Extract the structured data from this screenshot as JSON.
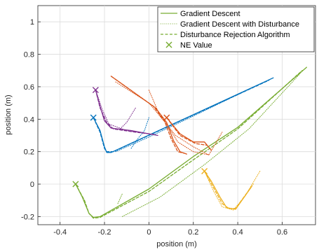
{
  "chart_data": {
    "type": "line",
    "title": "",
    "xlabel": "position (m)",
    "ylabel": "position (m)",
    "xlim": [
      -0.5,
      0.75
    ],
    "ylim": [
      -0.25,
      1.1
    ],
    "xticks": [
      -0.4,
      -0.2,
      0,
      0.2,
      0.4,
      0.6
    ],
    "yticks": [
      -0.2,
      0,
      0.2,
      0.4,
      0.6,
      0.8,
      1
    ],
    "xtick_labels": [
      "-0.4",
      "-0.2",
      "0",
      "0.2",
      "0.4",
      "0.6"
    ],
    "ytick_labels": [
      "-0.2",
      "0",
      "0.2",
      "0.4",
      "0.6",
      "0.8",
      "1"
    ],
    "grid": true,
    "legend_position": "top-right",
    "legend": [
      {
        "label": "Gradient Descent",
        "style": "solid"
      },
      {
        "label": "Gradient Descent with Disturbance",
        "style": "dotted"
      },
      {
        "label": "Disturbance Rejection Algorithm",
        "style": "dashed"
      },
      {
        "label": "NE Value",
        "style": "marker-x"
      }
    ],
    "series": [
      {
        "color": "#77ac30",
        "ne": [
          -0.33,
          0.0
        ],
        "gd": [
          [
            -0.33,
            0.0
          ],
          [
            -0.3,
            -0.08
          ],
          [
            -0.27,
            -0.18
          ],
          [
            -0.25,
            -0.205
          ],
          [
            -0.22,
            -0.2
          ],
          [
            0.0,
            -0.03
          ],
          [
            0.2,
            0.17
          ],
          [
            0.4,
            0.35
          ],
          [
            0.71,
            0.72
          ]
        ],
        "disturbed": [
          [
            -0.12,
            -0.2
          ],
          [
            0.05,
            -0.08
          ],
          [
            0.25,
            0.12
          ],
          [
            0.45,
            0.34
          ],
          [
            0.68,
            0.68
          ]
        ],
        "rejection": [
          [
            -0.33,
            0.0
          ],
          [
            -0.29,
            -0.1
          ],
          [
            -0.27,
            -0.18
          ],
          [
            -0.25,
            -0.21
          ],
          [
            -0.22,
            -0.205
          ],
          [
            0.0,
            -0.045
          ],
          [
            0.2,
            0.15
          ],
          [
            0.4,
            0.34
          ],
          [
            0.69,
            0.7
          ]
        ]
      },
      {
        "color": "#77ac30",
        "ne": null,
        "gd": [],
        "disturbed": [
          [
            -0.14,
            -0.12
          ],
          [
            -0.12,
            -0.06
          ]
        ],
        "rejection": []
      },
      {
        "color": "#edb120",
        "ne": [
          0.25,
          0.08
        ],
        "gd": [
          [
            0.25,
            0.08
          ],
          [
            0.28,
            0.02
          ],
          [
            0.32,
            -0.08
          ],
          [
            0.35,
            -0.145
          ],
          [
            0.39,
            -0.155
          ],
          [
            0.46,
            -0.02
          ]
        ],
        "disturbed": [
          [
            0.25,
            0.08
          ],
          [
            0.29,
            -0.04
          ],
          [
            0.33,
            -0.14
          ],
          [
            0.38,
            -0.16
          ],
          [
            0.43,
            -0.08
          ],
          [
            0.5,
            0.08
          ]
        ],
        "rejection": [
          [
            0.25,
            0.08
          ],
          [
            0.29,
            -0.02
          ],
          [
            0.33,
            -0.12
          ],
          [
            0.36,
            -0.15
          ],
          [
            0.39,
            -0.15
          ],
          [
            0.47,
            0.0
          ]
        ]
      },
      {
        "color": "#0072bd",
        "ne": [
          -0.25,
          0.41
        ],
        "gd": [
          [
            -0.25,
            0.41
          ],
          [
            -0.22,
            0.33
          ],
          [
            -0.2,
            0.23
          ],
          [
            -0.19,
            0.195
          ],
          [
            -0.17,
            0.195
          ],
          [
            0.56,
            0.655
          ]
        ],
        "disturbed": [
          [
            -0.15,
            0.2
          ],
          [
            0.0,
            0.29
          ],
          [
            0.2,
            0.42
          ],
          [
            0.52,
            0.63
          ]
        ],
        "rejection": [
          [
            -0.25,
            0.41
          ],
          [
            -0.22,
            0.32
          ],
          [
            -0.2,
            0.22
          ],
          [
            -0.19,
            0.2
          ],
          [
            -0.16,
            0.2
          ],
          [
            0.54,
            0.64
          ]
        ]
      },
      {
        "color": "#0072bd",
        "ne": null,
        "gd": [],
        "disturbed": [
          [
            -0.08,
            0.22
          ],
          [
            -0.05,
            0.28
          ],
          [
            -0.02,
            0.33
          ],
          [
            0.0,
            0.41
          ]
        ],
        "rejection": []
      },
      {
        "color": "#7e2f8e",
        "ne": [
          -0.24,
          0.58
        ],
        "gd": [
          [
            -0.24,
            0.58
          ],
          [
            -0.22,
            0.48
          ],
          [
            -0.2,
            0.39
          ],
          [
            -0.17,
            0.345
          ],
          [
            -0.08,
            0.33
          ],
          [
            0.04,
            0.3
          ]
        ],
        "disturbed": [
          [
            -0.24,
            0.58
          ],
          [
            -0.21,
            0.46
          ],
          [
            -0.18,
            0.37
          ],
          [
            -0.1,
            0.33
          ],
          [
            0.0,
            0.31
          ]
        ],
        "rejection": [
          [
            -0.24,
            0.58
          ],
          [
            -0.22,
            0.47
          ],
          [
            -0.19,
            0.38
          ],
          [
            -0.16,
            0.34
          ],
          [
            -0.06,
            0.32
          ],
          [
            0.03,
            0.305
          ]
        ]
      },
      {
        "color": "#7e2f8e",
        "ne": null,
        "gd": [],
        "disturbed": [
          [
            -0.13,
            0.34
          ],
          [
            -0.1,
            0.38
          ],
          [
            -0.06,
            0.47
          ]
        ],
        "rejection": []
      },
      {
        "color": "#d95319",
        "ne": [
          0.08,
          0.41
        ],
        "gd": [
          [
            -0.17,
            0.665
          ],
          [
            0.03,
            0.47
          ],
          [
            0.08,
            0.38
          ],
          [
            0.11,
            0.27
          ],
          [
            0.14,
            0.2
          ],
          [
            0.17,
            0.185
          ]
        ],
        "disturbed": [
          [
            -0.15,
            0.63
          ],
          [
            0.0,
            0.5
          ],
          [
            0.08,
            0.37
          ],
          [
            0.13,
            0.26
          ],
          [
            0.2,
            0.2
          ],
          [
            0.27,
            0.18
          ]
        ],
        "rejection": [
          [
            -0.17,
            0.665
          ],
          [
            0.02,
            0.48
          ],
          [
            0.07,
            0.39
          ],
          [
            0.1,
            0.28
          ],
          [
            0.13,
            0.2
          ],
          [
            0.16,
            0.19
          ]
        ]
      },
      {
        "color": "#d95319",
        "ne": null,
        "gd": [
          [
            0.08,
            0.41
          ],
          [
            0.14,
            0.31
          ],
          [
            0.2,
            0.26
          ],
          [
            0.25,
            0.26
          ],
          [
            0.28,
            0.21
          ]
        ],
        "disturbed": [
          [
            0.0,
            0.58
          ],
          [
            0.05,
            0.42
          ],
          [
            0.12,
            0.3
          ],
          [
            0.2,
            0.23
          ],
          [
            0.27,
            0.18
          ],
          [
            0.33,
            0.32
          ]
        ],
        "rejection": [
          [
            0.08,
            0.41
          ],
          [
            0.14,
            0.3
          ],
          [
            0.21,
            0.25
          ],
          [
            0.26,
            0.24
          ]
        ]
      }
    ]
  }
}
